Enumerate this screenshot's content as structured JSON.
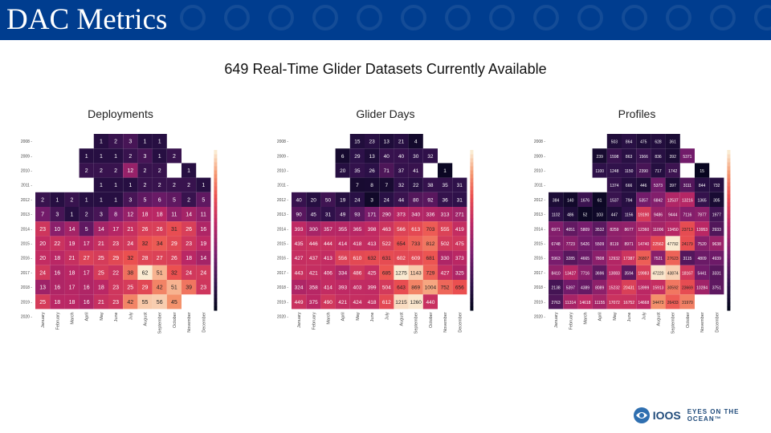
{
  "header": {
    "title": "DAC Metrics"
  },
  "subtitle": "649 Real-Time Glider Datasets Currently Available",
  "footer": {
    "logo_text": "IOOS",
    "tagline": "EYES ON THE OCEAN™"
  },
  "colors": {
    "header_bg": "#003d8f",
    "empty_cell": "#ffffff"
  },
  "chart_data": [
    {
      "type": "heatmap",
      "title": "Deployments",
      "rows": [
        "2008",
        "2009",
        "2010",
        "2011",
        "2012",
        "2013",
        "2014",
        "2015",
        "2016",
        "2017",
        "2018",
        "2019",
        "2020"
      ],
      "columns": [
        "January",
        "February",
        "March",
        "April",
        "May",
        "June",
        "July",
        "August",
        "September",
        "October",
        "November",
        "December"
      ],
      "values": [
        [
          null,
          null,
          null,
          null,
          1,
          2,
          3,
          1,
          1,
          null,
          null,
          null
        ],
        [
          null,
          null,
          null,
          1,
          1,
          1,
          2,
          3,
          1,
          2,
          null,
          null
        ],
        [
          null,
          null,
          null,
          2,
          2,
          2,
          12,
          2,
          2,
          null,
          1,
          null
        ],
        [
          null,
          null,
          null,
          null,
          1,
          1,
          1,
          2,
          2,
          2,
          2,
          1
        ],
        [
          2,
          1,
          2,
          1,
          1,
          1,
          3,
          5,
          6,
          5,
          2,
          5
        ],
        [
          7,
          3,
          1,
          2,
          3,
          8,
          12,
          18,
          18,
          11,
          14,
          11
        ],
        [
          23,
          10,
          14,
          5,
          14,
          17,
          21,
          26,
          26,
          31,
          26,
          16
        ],
        [
          20,
          22,
          19,
          17,
          21,
          23,
          24,
          32,
          34,
          29,
          23,
          19
        ],
        [
          20,
          18,
          21,
          27,
          25,
          29,
          32,
          28,
          27,
          26,
          18,
          14
        ],
        [
          24,
          16,
          18,
          17,
          25,
          22,
          38,
          62,
          51,
          32,
          24,
          24
        ],
        [
          13,
          16,
          17,
          16,
          18,
          23,
          25,
          29,
          42,
          51,
          39,
          23
        ],
        [
          25,
          18,
          18,
          16,
          21,
          23,
          42,
          55,
          56,
          45,
          null,
          null
        ],
        [
          null,
          null,
          null,
          null,
          null,
          null,
          null,
          null,
          null,
          null,
          null,
          null
        ]
      ],
      "max": 62
    },
    {
      "type": "heatmap",
      "title": "Glider Days",
      "rows": [
        "2008",
        "2009",
        "2010",
        "2011",
        "2012",
        "2013",
        "2014",
        "2015",
        "2016",
        "2017",
        "2018",
        "2019",
        "2020"
      ],
      "columns": [
        "January",
        "February",
        "March",
        "April",
        "May",
        "June",
        "July",
        "August",
        "September",
        "October",
        "November",
        "December"
      ],
      "values": [
        [
          null,
          null,
          null,
          null,
          15,
          23,
          13,
          21,
          4,
          null,
          null,
          null
        ],
        [
          null,
          null,
          null,
          6,
          29,
          13,
          40,
          40,
          30,
          32,
          null,
          null
        ],
        [
          null,
          null,
          null,
          20,
          35,
          26,
          71,
          37,
          41,
          null,
          1,
          null
        ],
        [
          null,
          null,
          null,
          null,
          7,
          8,
          7,
          32,
          22,
          38,
          35,
          31
        ],
        [
          40,
          20,
          50,
          19,
          24,
          3,
          24,
          44,
          80,
          92,
          36,
          31
        ],
        [
          90,
          45,
          31,
          49,
          93,
          171,
          290,
          373,
          340,
          336,
          313,
          271
        ],
        [
          393,
          300,
          357,
          355,
          365,
          398,
          463,
          566,
          613,
          703,
          555,
          419
        ],
        [
          435,
          446,
          444,
          414,
          418,
          413,
          522,
          654,
          733,
          812,
          502,
          475
        ],
        [
          427,
          437,
          413,
          556,
          610,
          632,
          631,
          602,
          609,
          681,
          330,
          373
        ],
        [
          443,
          421,
          406,
          334,
          486,
          425,
          685,
          1275,
          1143,
          729,
          427,
          325
        ],
        [
          324,
          358,
          414,
          393,
          403,
          399,
          504,
          643,
          869,
          1004,
          752,
          656
        ],
        [
          449,
          375,
          490,
          421,
          424,
          418,
          612,
          1215,
          1260,
          440,
          null,
          null
        ],
        [
          null,
          null,
          null,
          null,
          null,
          null,
          null,
          null,
          null,
          null,
          null,
          null
        ]
      ],
      "max": 1280
    },
    {
      "type": "heatmap",
      "title": "Profiles",
      "rows": [
        "2008",
        "2009",
        "2010",
        "2011",
        "2012",
        "2013",
        "2014",
        "2015",
        "2016",
        "2017",
        "2018",
        "2019",
        "2020"
      ],
      "columns": [
        "January",
        "February",
        "March",
        "April",
        "May",
        "June",
        "July",
        "August",
        "September",
        "October",
        "November",
        "December"
      ],
      "values": [
        [
          null,
          null,
          null,
          null,
          503,
          864,
          475,
          628,
          361,
          null,
          null,
          null
        ],
        [
          null,
          null,
          null,
          239,
          1598,
          863,
          1566,
          836,
          392,
          5371,
          null,
          null
        ],
        [
          null,
          null,
          null,
          1100,
          1248,
          1150,
          2390,
          717,
          1742,
          null,
          15,
          null
        ],
        [
          null,
          null,
          null,
          null,
          1374,
          666,
          446,
          5373,
          397,
          3111,
          844,
          732
        ],
        [
          384,
          140,
          1676,
          61,
          1537,
          794,
          5357,
          6842,
          12537,
          13216,
          1365,
          305
        ],
        [
          1102,
          486,
          52,
          103,
          447,
          1156,
          19190,
          9486,
          9444,
          7116,
          7877,
          1977
        ],
        [
          6971,
          4051,
          5809,
          3532,
          8259,
          8677,
          12360,
          11006,
          13450,
          23713,
          13953,
          2933
        ],
        [
          6748,
          7723,
          5426,
          5509,
          8119,
          8971,
          14740,
          22562,
          47792,
          24179,
          7520,
          9638
        ],
        [
          5963,
          3285,
          4665,
          7808,
          12932,
          17387,
          26807,
          7521,
          27623,
          3115,
          4809,
          4939
        ],
        [
          8410,
          13427,
          7716,
          3696,
          13083,
          3594,
          19983,
          47220,
          43874,
          18167,
          5441,
          3331
        ],
        [
          2138,
          5397,
          4389,
          8089,
          15232,
          20431,
          13999,
          15913,
          30592,
          23669,
          10284,
          3751
        ],
        [
          2763,
          11314,
          14618,
          11155,
          17072,
          16752,
          14668,
          34473,
          26433,
          31970,
          null,
          null
        ],
        [
          null,
          null,
          null,
          null,
          null,
          null,
          null,
          null,
          null,
          null,
          null,
          null
        ]
      ],
      "max": 48000
    }
  ]
}
